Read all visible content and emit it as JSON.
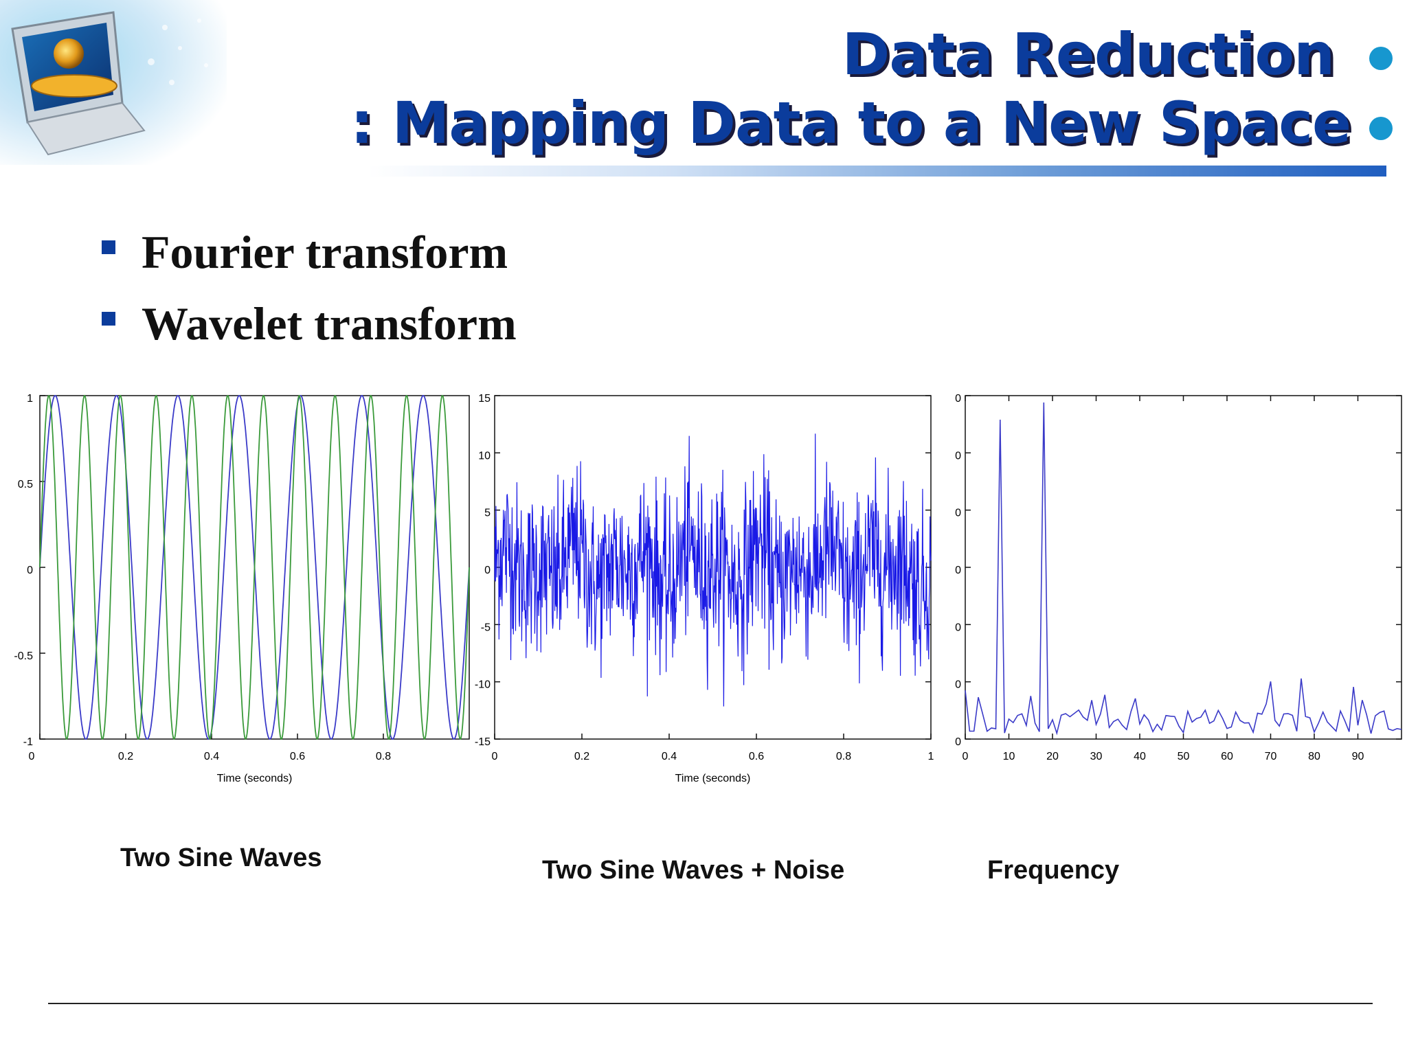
{
  "header": {
    "title_line1": "Data Reduction",
    "title_line2": ": Mapping Data to a New Space",
    "accent_color": "#0b3c9c",
    "dot_color": "#1797cf",
    "logo_icon": "computer-globe-icon"
  },
  "bullets": [
    {
      "text": "Fourier transform"
    },
    {
      "text": "Wavelet transform"
    }
  ],
  "captions": {
    "chart1": "Two Sine Waves",
    "chart2": "Two Sine Waves + Noise",
    "chart3": "Frequency"
  },
  "chart_data": [
    {
      "type": "line",
      "xlabel": "Time (seconds)",
      "ylabel": "",
      "xlim": [
        0,
        1
      ],
      "ylim": [
        -1,
        1
      ],
      "x_ticks": [
        "0",
        "0.2",
        "0.4",
        "0.6",
        "0.8"
      ],
      "y_ticks": [
        "1",
        "0.5",
        "0",
        "-0.5",
        "-1"
      ],
      "series": [
        {
          "frequency_hz": 7,
          "amplitude": 1,
          "color": "#3a3ac8"
        },
        {
          "frequency_hz": 12,
          "amplitude": 1,
          "color": "#3a9a3a"
        }
      ]
    },
    {
      "type": "line",
      "xlabel": "Time (seconds)",
      "ylabel": "",
      "xlim": [
        0,
        1
      ],
      "ylim": [
        -15,
        15
      ],
      "x_ticks": [
        "0",
        "0.2",
        "0.4",
        "0.6",
        "0.8",
        "1"
      ],
      "y_ticks": [
        "15",
        "10",
        "5",
        "0",
        "-5",
        "-10",
        "-15"
      ],
      "series": [
        {
          "color": "#1a1ae6"
        }
      ]
    },
    {
      "type": "line",
      "xlabel": "",
      "ylabel": "",
      "xlim": [
        0,
        100
      ],
      "x_ticks": [
        "0",
        "10",
        "20",
        "30",
        "40",
        "50",
        "60",
        "70",
        "80",
        "90"
      ],
      "y_ticks": [
        "0",
        "0",
        "0",
        "0",
        "0",
        "0",
        "0"
      ],
      "peaks": [
        {
          "x": 8,
          "y": 0.93
        },
        {
          "x": 18,
          "y": 0.98
        }
      ],
      "series": [
        {
          "color": "#3a3ac8"
        }
      ]
    }
  ]
}
